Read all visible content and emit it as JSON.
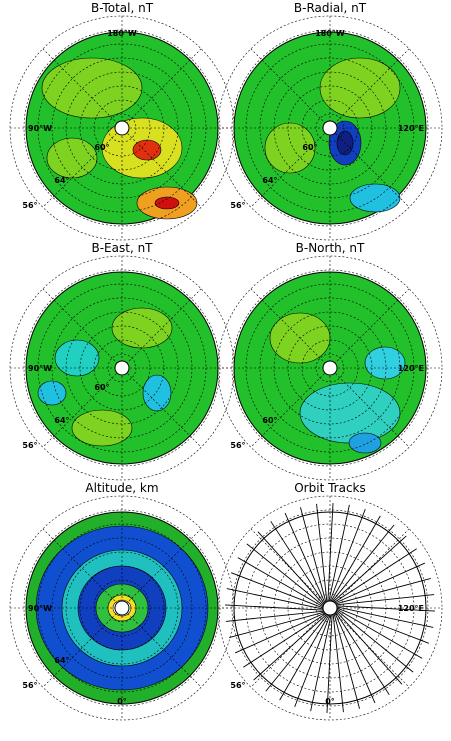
{
  "panels": [
    {
      "title": "B-Total, nT",
      "top": "180°W",
      "left": "90°W",
      "lats": [
        "60°",
        "64°",
        "56°"
      ]
    },
    {
      "title": "B-Radial, nT",
      "top": "180°W",
      "right": "120°E",
      "lats": [
        "60°",
        "64°",
        "56°"
      ]
    },
    {
      "title": "B-East, nT",
      "left": "90°W",
      "lats": [
        "60°",
        "64°",
        "56°"
      ]
    },
    {
      "title": "B-North, nT",
      "right": "120°E",
      "lats": [
        "60°",
        "56°"
      ]
    },
    {
      "title": "Altitude, km",
      "left": "90°W",
      "bottom": "0°",
      "lats": [
        "64°",
        "56°"
      ]
    },
    {
      "title": "Orbit Tracks",
      "right": "120°E",
      "bottom": "0°",
      "lats": [
        "56°"
      ]
    }
  ]
}
